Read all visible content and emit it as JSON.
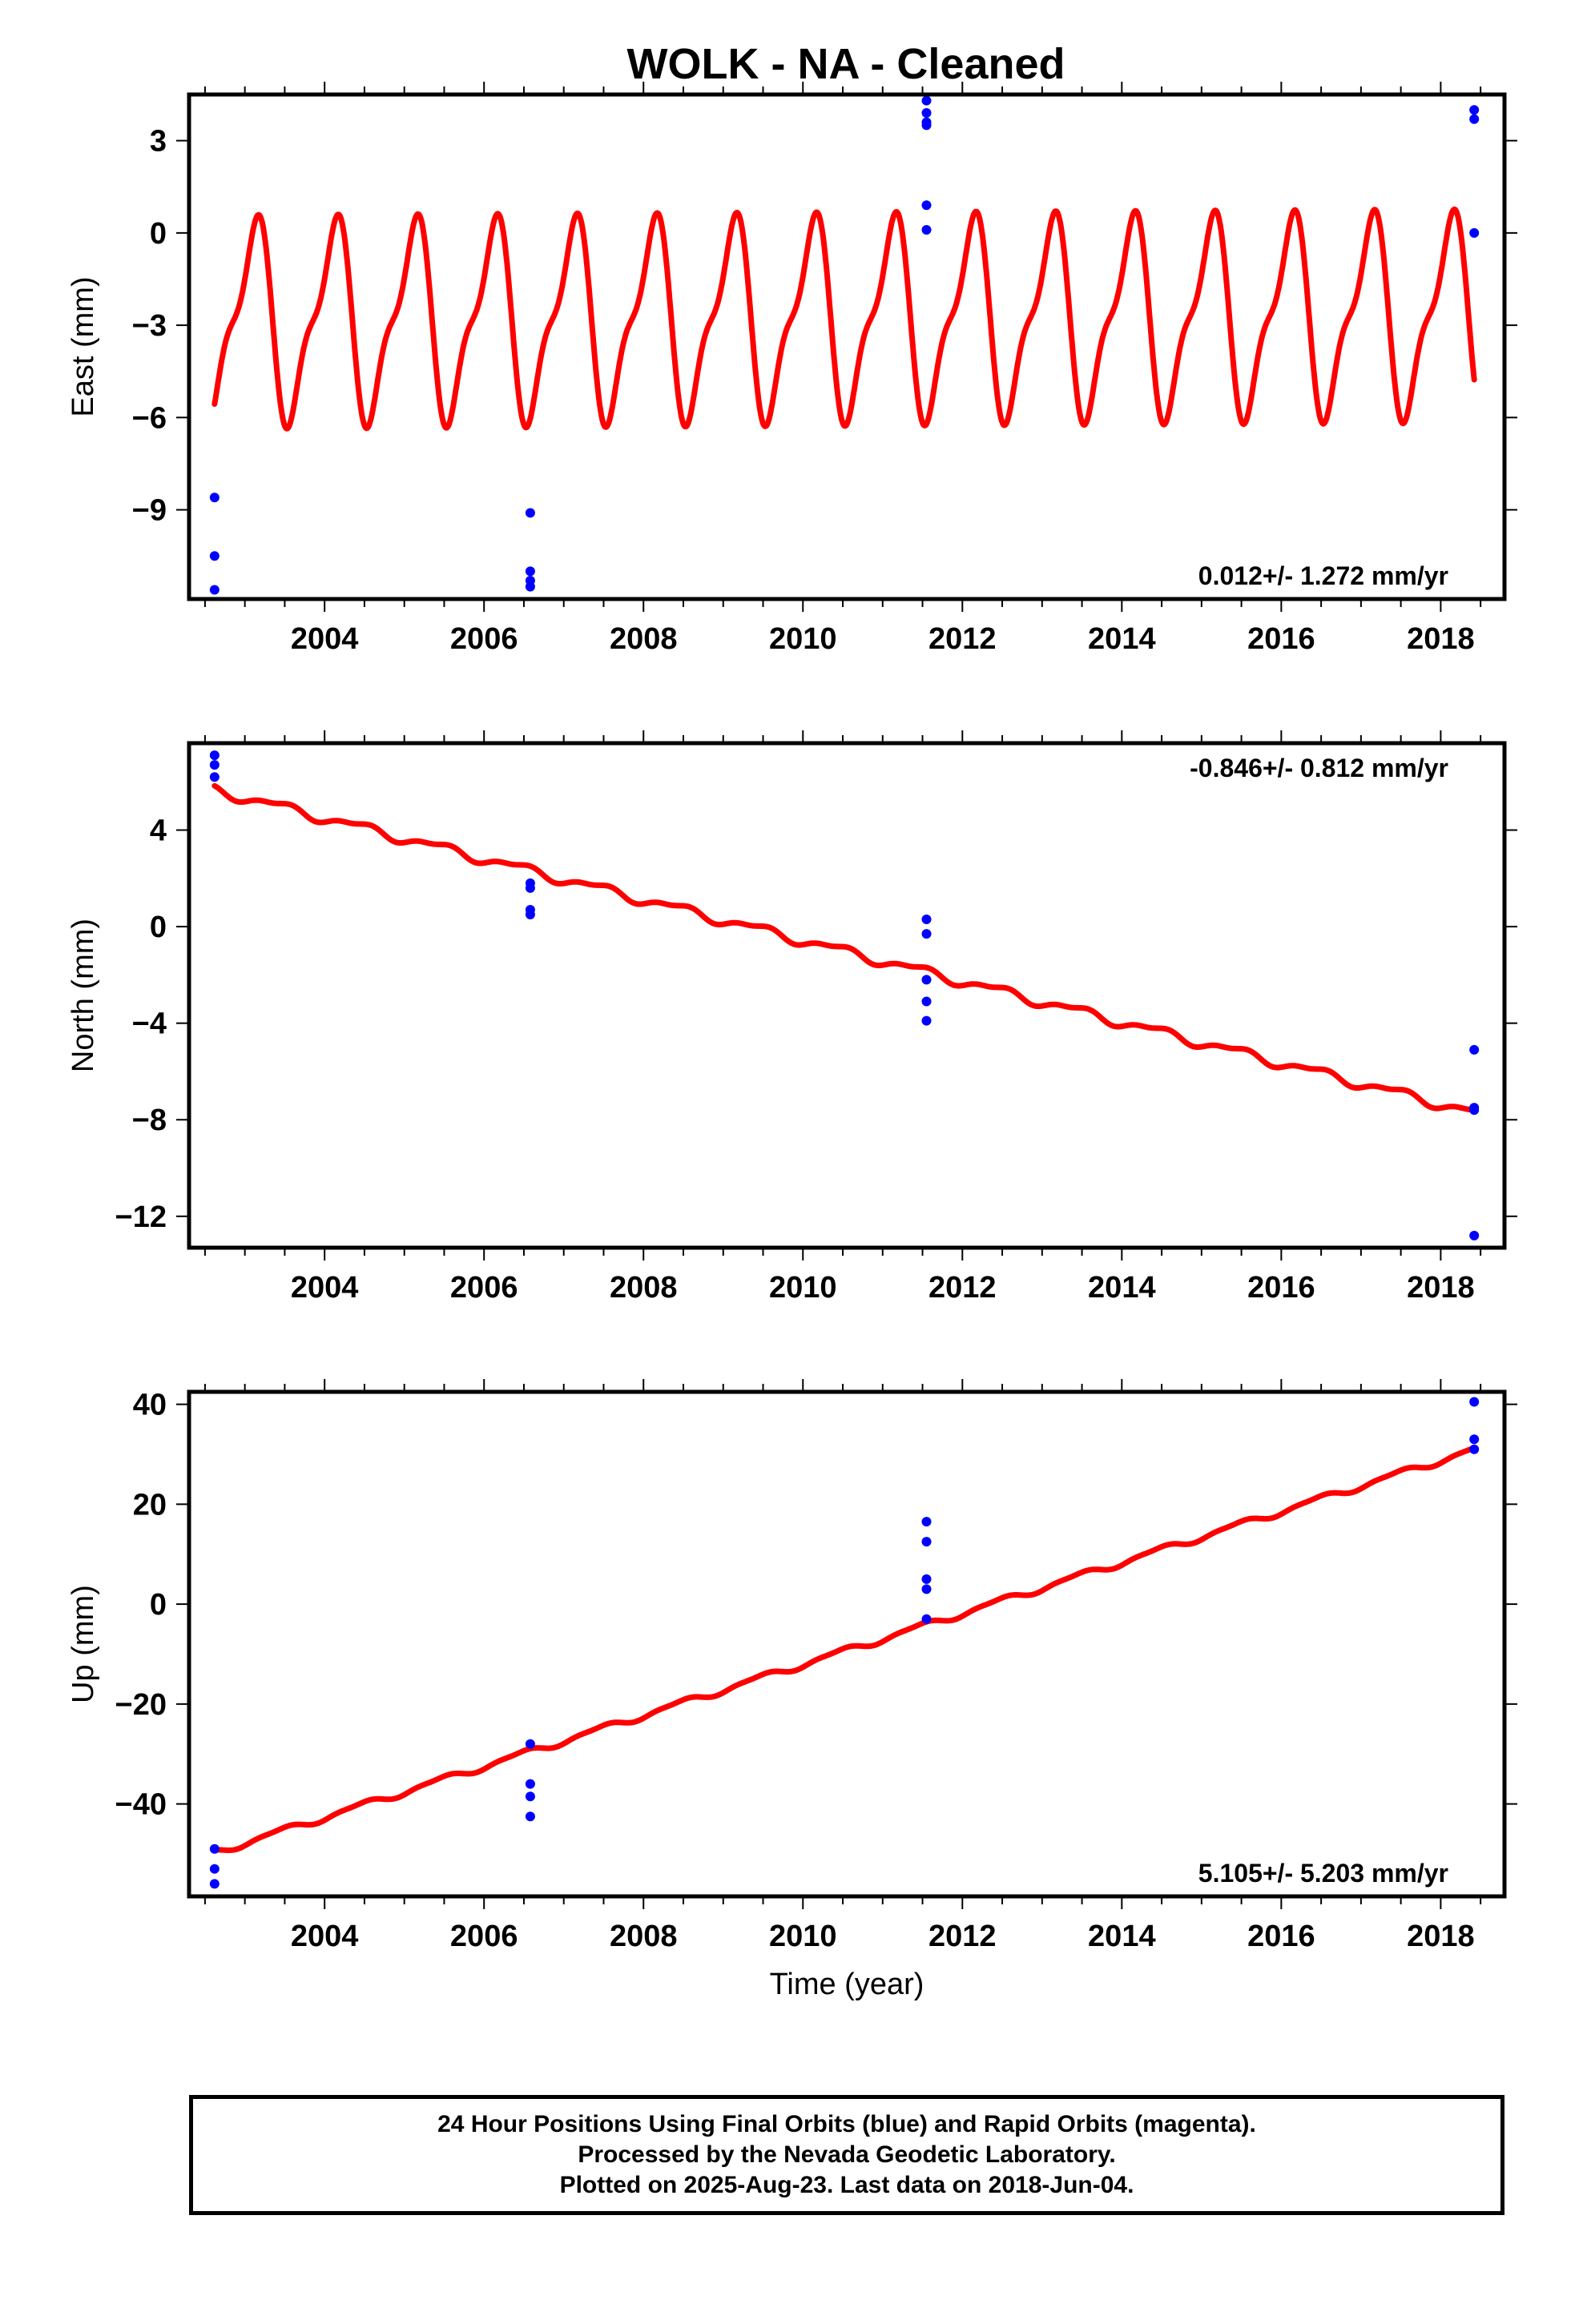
{
  "title": "WOLK  - NA - Cleaned",
  "caption": [
    "24 Hour Positions Using Final Orbits (blue) and Rapid Orbits (magenta).",
    "Processed by the Nevada Geodetic Laboratory.",
    "Plotted on 2025-Aug-23. Last data on 2018-Jun-04."
  ],
  "colors": {
    "observations": "#0000ff",
    "model": "#ff0000"
  },
  "chart_data": [
    {
      "type": "scatter",
      "ylabel": "East (mm)",
      "xlabel": "",
      "rate_label": "0.012+/- 1.272 mm/yr",
      "xlim": [
        2002.3,
        2018.8
      ],
      "ylim": [
        -11.9,
        4.5
      ],
      "xticks": [
        2004,
        2006,
        2008,
        2010,
        2012,
        2014,
        2016,
        2018
      ],
      "yticks": [
        -9,
        -6,
        -3,
        0,
        3
      ],
      "ytick_labels": [
        "−9",
        "−6",
        "−3",
        "0",
        "3"
      ],
      "observations": {
        "x": [
          2002.62,
          2002.62,
          2002.62,
          2006.58,
          2006.58,
          2006.58,
          2006.58,
          2011.55,
          2011.55,
          2011.55,
          2011.55,
          2011.55,
          2011.55,
          2018.42,
          2018.42,
          2018.42
        ],
        "y": [
          -8.6,
          -10.5,
          -11.6,
          -9.1,
          -11.0,
          -11.3,
          -11.5,
          4.3,
          3.9,
          3.6,
          3.5,
          0.9,
          0.1,
          4.0,
          3.7,
          0.0
        ]
      },
      "model": {
        "type": "line",
        "x_start": 2002.62,
        "x_end": 2018.42,
        "offset": -2.8,
        "rate": 0.012,
        "ref_epoch": 2010.5,
        "annual_amp": 2.95,
        "annual_phase": -0.15,
        "semiannual_amp": 1.05,
        "semiannual_phase": 0.1
      }
    },
    {
      "type": "scatter",
      "ylabel": "North (mm)",
      "xlabel": "",
      "rate_label": "-0.846+/- 0.812 mm/yr",
      "xlim": [
        2002.3,
        2018.8
      ],
      "ylim": [
        -13.3,
        7.6
      ],
      "xticks": [
        2004,
        2006,
        2008,
        2010,
        2012,
        2014,
        2016,
        2018
      ],
      "yticks": [
        -12,
        -8,
        -4,
        0,
        4
      ],
      "ytick_labels": [
        "−12",
        "−8",
        "−4",
        "0",
        "4"
      ],
      "observations": {
        "x": [
          2002.62,
          2002.62,
          2002.62,
          2006.58,
          2006.58,
          2006.58,
          2006.58,
          2011.55,
          2011.55,
          2011.55,
          2011.55,
          2011.55,
          2018.42,
          2018.42,
          2018.42,
          2018.42
        ],
        "y": [
          7.1,
          6.7,
          6.2,
          1.8,
          1.6,
          0.7,
          0.5,
          0.3,
          -0.3,
          -2.2,
          -3.1,
          -3.9,
          -5.1,
          -7.5,
          -7.6,
          -12.8
        ]
      },
      "model": {
        "type": "line",
        "x_start": 2002.62,
        "x_end": 2018.42,
        "offset": -1.0,
        "rate": -0.846,
        "ref_epoch": 2010.5,
        "annual_amp": 0.18,
        "annual_phase": 0.2,
        "semiannual_amp": 0.08,
        "semiannual_phase": 0.0
      }
    },
    {
      "type": "scatter",
      "ylabel": "Up (mm)",
      "xlabel": "Time (year)",
      "rate_label": "5.105+/- 5.203 mm/yr",
      "xlim": [
        2002.3,
        2018.8
      ],
      "ylim": [
        -58.5,
        42.5
      ],
      "xticks": [
        2004,
        2006,
        2008,
        2010,
        2012,
        2014,
        2016,
        2018
      ],
      "yticks": [
        -40,
        -20,
        0,
        20,
        40
      ],
      "ytick_labels": [
        "−40",
        "−20",
        "0",
        "20",
        "40"
      ],
      "observations": {
        "x": [
          2002.62,
          2002.62,
          2002.62,
          2006.58,
          2006.58,
          2006.58,
          2006.58,
          2011.55,
          2011.55,
          2011.55,
          2011.55,
          2011.55,
          2018.42,
          2018.42,
          2018.42
        ],
        "y": [
          -49.0,
          -53.0,
          -56.0,
          -28.0,
          -36.0,
          -38.5,
          -42.5,
          16.5,
          12.5,
          5.0,
          3.0,
          -3.0,
          40.5,
          33.0,
          31.0
        ]
      },
      "model": {
        "type": "line",
        "x_start": 2002.62,
        "x_end": 2018.42,
        "offset": -9.5,
        "rate": 5.105,
        "ref_epoch": 2010.5,
        "annual_amp": 0.6,
        "annual_phase": 0.2,
        "semiannual_amp": 0.2,
        "semiannual_phase": 0.0
      }
    }
  ]
}
